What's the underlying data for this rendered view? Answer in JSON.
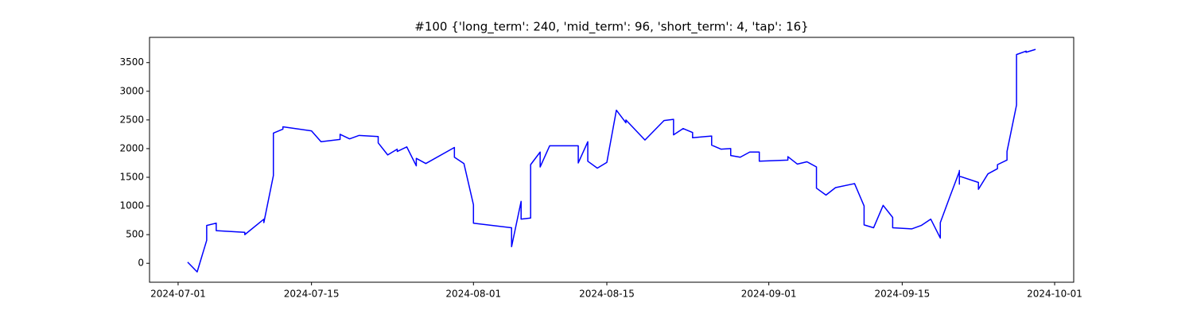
{
  "chart_data": {
    "type": "line",
    "title": "#100 {'long_term': 240, 'mid_term': 96, 'short_term': 4, 'tap': 16}",
    "x": [
      "2024-07-02",
      "2024-07-03",
      "2024-07-04",
      "2024-07-04",
      "2024-07-05",
      "2024-07-05",
      "2024-07-08",
      "2024-07-08",
      "2024-07-10",
      "2024-07-10",
      "2024-07-11",
      "2024-07-11",
      "2024-07-12",
      "2024-07-12",
      "2024-07-15",
      "2024-07-16",
      "2024-07-18",
      "2024-07-18",
      "2024-07-19",
      "2024-07-20",
      "2024-07-22",
      "2024-07-22",
      "2024-07-23",
      "2024-07-24",
      "2024-07-24",
      "2024-07-25",
      "2024-07-26",
      "2024-07-26",
      "2024-07-27",
      "2024-07-30",
      "2024-07-30",
      "2024-07-31",
      "2024-08-01",
      "2024-08-01",
      "2024-08-05",
      "2024-08-05",
      "2024-08-06",
      "2024-08-06",
      "2024-08-07",
      "2024-08-07",
      "2024-08-08",
      "2024-08-08",
      "2024-08-09",
      "2024-08-12",
      "2024-08-12",
      "2024-08-13",
      "2024-08-13",
      "2024-08-14",
      "2024-08-15",
      "2024-08-16",
      "2024-08-17",
      "2024-08-17",
      "2024-08-19",
      "2024-08-21",
      "2024-08-22",
      "2024-08-22",
      "2024-08-23",
      "2024-08-24",
      "2024-08-24",
      "2024-08-26",
      "2024-08-26",
      "2024-08-27",
      "2024-08-28",
      "2024-08-28",
      "2024-08-29",
      "2024-08-30",
      "2024-08-31",
      "2024-08-31",
      "2024-09-03",
      "2024-09-03",
      "2024-09-04",
      "2024-09-05",
      "2024-09-06",
      "2024-09-06",
      "2024-09-07",
      "2024-09-08",
      "2024-09-10",
      "2024-09-11",
      "2024-09-11",
      "2024-09-12",
      "2024-09-13",
      "2024-09-14",
      "2024-09-14",
      "2024-09-16",
      "2024-09-17",
      "2024-09-18",
      "2024-09-19",
      "2024-09-19",
      "2024-09-20",
      "2024-09-21",
      "2024-09-21",
      "2024-09-21",
      "2024-09-21",
      "2024-09-23",
      "2024-09-23",
      "2024-09-24",
      "2024-09-25",
      "2024-09-25",
      "2024-09-26",
      "2024-09-26",
      "2024-09-27",
      "2024-09-27",
      "2024-09-28",
      "2024-09-28",
      "2024-09-29"
    ],
    "series": [
      {
        "color": "#0000ff",
        "values": [
          20,
          -150,
          400,
          660,
          700,
          570,
          540,
          500,
          770,
          710,
          1530,
          2270,
          2340,
          2380,
          2310,
          2120,
          2160,
          2250,
          2170,
          2230,
          2210,
          2100,
          1890,
          1990,
          1950,
          2030,
          1700,
          1830,
          1740,
          2020,
          1850,
          1740,
          1020,
          700,
          620,
          290,
          1080,
          770,
          790,
          1720,
          1940,
          1680,
          2050,
          2050,
          1750,
          2120,
          1780,
          1660,
          1760,
          2670,
          2450,
          2500,
          2150,
          2490,
          2510,
          2240,
          2350,
          2280,
          2190,
          2220,
          2060,
          1990,
          2000,
          1880,
          1850,
          1940,
          1940,
          1780,
          1800,
          1860,
          1730,
          1770,
          1680,
          1310,
          1190,
          1320,
          1390,
          1000,
          670,
          620,
          1010,
          800,
          620,
          600,
          660,
          770,
          440,
          710,
          1160,
          1600,
          1380,
          1620,
          1520,
          1410,
          1290,
          1560,
          1650,
          1720,
          1800,
          1950,
          2760,
          3640,
          3700,
          3680,
          3730
        ]
      }
    ],
    "xlim": [
      "2024-06-28",
      "2024-10-03"
    ],
    "xticks": [
      "2024-07-01",
      "2024-07-15",
      "2024-08-01",
      "2024-08-15",
      "2024-09-01",
      "2024-09-15",
      "2024-10-01"
    ],
    "ylim": [
      -330,
      3940
    ],
    "yticks": [
      0,
      500,
      1000,
      1500,
      2000,
      2500,
      3000,
      3500
    ],
    "grid": false
  }
}
